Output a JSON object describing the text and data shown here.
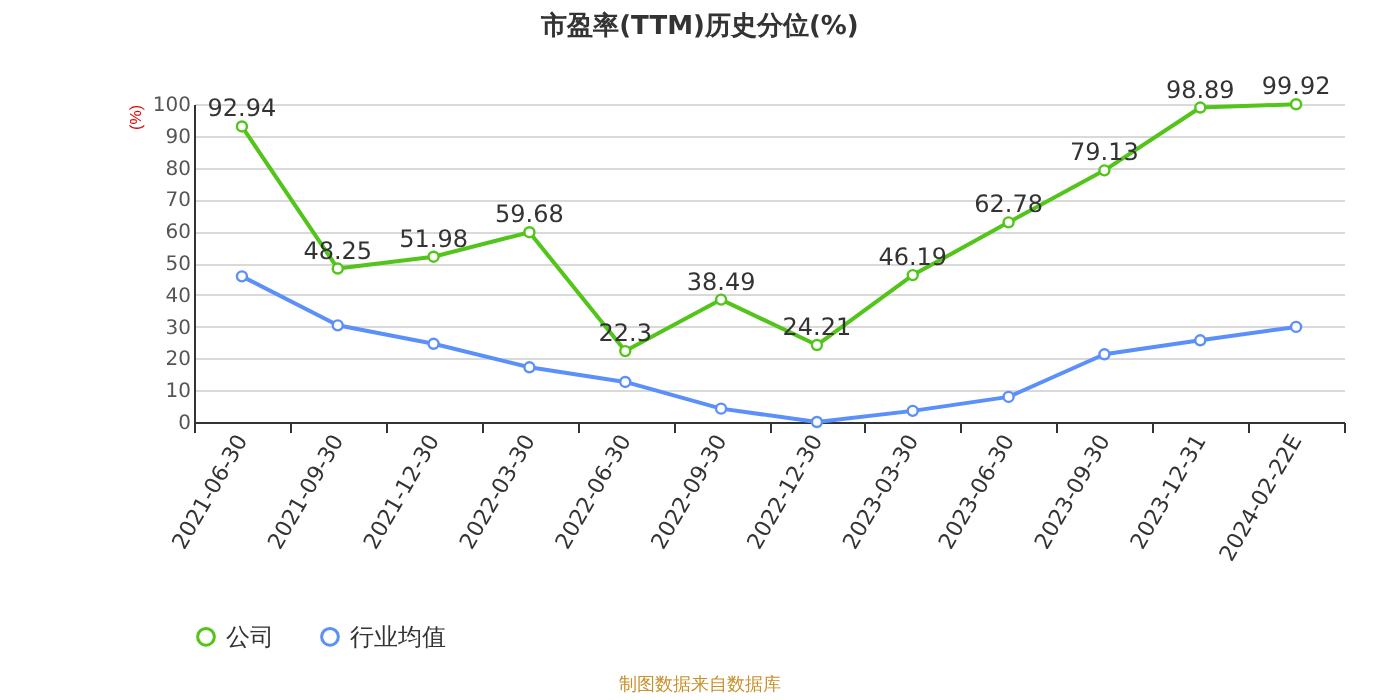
{
  "chart_data": {
    "type": "line",
    "title": "市盈率(TTM)历史分位(%)",
    "ylabel": "(%)",
    "categories": [
      "2021-06-30",
      "2021-09-30",
      "2021-12-30",
      "2022-03-30",
      "2022-06-30",
      "2022-09-30",
      "2022-12-30",
      "2023-03-30",
      "2023-06-30",
      "2023-09-30",
      "2023-12-31",
      "2024-02-22E"
    ],
    "series": [
      {
        "name": "公司",
        "color": "#52c41a",
        "values": [
          92.94,
          48.25,
          51.98,
          59.68,
          22.3,
          38.49,
          24.21,
          46.19,
          62.78,
          79.13,
          98.89,
          99.92
        ],
        "value_labels": [
          "92.94",
          "48.25",
          "51.98",
          "59.68",
          "22.3",
          "38.49",
          "24.21",
          "46.19",
          "62.78",
          "79.13",
          "98.89",
          "99.92"
        ]
      },
      {
        "name": "行业均值",
        "color": "#5b8ff9",
        "values": [
          45.8,
          30.4,
          24.6,
          17.2,
          12.6,
          4.2,
          0,
          3.5,
          7.9,
          21.3,
          25.7,
          29.9
        ]
      }
    ],
    "ylim": [
      0,
      100
    ],
    "yticks": [
      0,
      10,
      20,
      30,
      40,
      50,
      60,
      70,
      80,
      90,
      100
    ],
    "grid": "y",
    "legend": "bottom",
    "marker": "circle",
    "line_style": "solid",
    "annotations": [
      "制图数据来自数据库"
    ]
  }
}
